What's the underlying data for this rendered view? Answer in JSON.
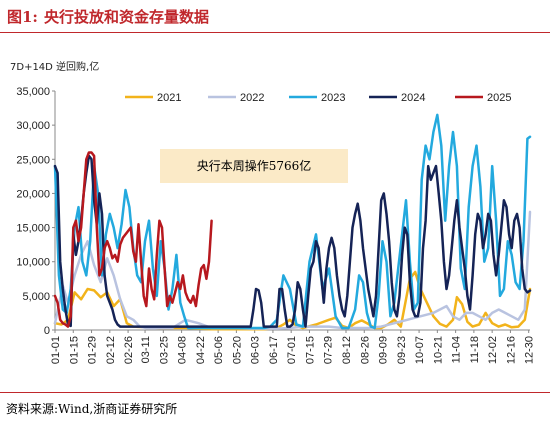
{
  "header": {
    "figure_label": "图1:",
    "title": "央行投放和资金存量数据"
  },
  "footer": {
    "source": "资料来源:Wind,浙商证券研究所"
  },
  "chart_data": {
    "type": "line",
    "unit_label": "7D+14D 逆回购,亿",
    "annotation": "央行本周操作5766亿",
    "ylim": [
      0,
      35000
    ],
    "yticks": [
      "0",
      "5,000",
      "10,000",
      "15,000",
      "20,000",
      "25,000",
      "30,000",
      "35,000"
    ],
    "yvalues": [
      0,
      5000,
      10000,
      15000,
      20000,
      25000,
      30000,
      35000
    ],
    "x_ticks": [
      "01-01",
      "01-15",
      "01-29",
      "02-12",
      "02-26",
      "03-11",
      "03-25",
      "04-08",
      "04-22",
      "05-06",
      "05-20",
      "06-03",
      "06-17",
      "07-01",
      "07-15",
      "07-29",
      "08-12",
      "08-26",
      "09-09",
      "09-23",
      "10-07",
      "10-21",
      "11-04",
      "11-18",
      "12-02",
      "12-16",
      "12-30"
    ],
    "x_tick_days": [
      0,
      14,
      28,
      42,
      56,
      69,
      83,
      97,
      111,
      125,
      139,
      153,
      167,
      181,
      195,
      209,
      223,
      237,
      251,
      265,
      279,
      293,
      307,
      321,
      335,
      349,
      363
    ],
    "legend_position": "top",
    "series": [
      {
        "name": "2021",
        "color": "#f2b31b",
        "x": [
          0,
          5,
          10,
          15,
          20,
          25,
          30,
          35,
          40,
          45,
          50,
          55,
          60,
          70,
          80,
          90,
          100,
          110,
          120,
          130,
          140,
          150,
          160,
          170,
          175,
          180,
          185,
          190,
          200,
          210,
          215,
          220,
          225,
          230,
          235,
          240,
          245,
          250,
          255,
          260,
          265,
          268,
          272,
          276,
          280,
          285,
          290,
          295,
          300,
          305,
          308,
          312,
          316,
          320,
          325,
          330,
          335,
          340,
          345,
          350,
          355,
          360,
          364
        ],
        "y": [
          1000,
          800,
          1500,
          5500,
          4500,
          6000,
          5800,
          4800,
          5500,
          3500,
          4500,
          1000,
          500,
          400,
          300,
          300,
          300,
          200,
          100,
          100,
          100,
          100,
          100,
          300,
          800,
          1500,
          600,
          300,
          800,
          1500,
          1800,
          600,
          300,
          1000,
          1400,
          900,
          300,
          300,
          800,
          1500,
          500,
          3500,
          7500,
          8500,
          6000,
          4000,
          2000,
          900,
          500,
          1500,
          4800,
          3800,
          1200,
          500,
          800,
          2500,
          1000,
          500,
          800,
          400,
          500,
          1500,
          6000
        ]
      },
      {
        "name": "2022",
        "color": "#b9c3e0",
        "x": [
          0,
          6,
          10,
          15,
          20,
          25,
          30,
          35,
          40,
          45,
          50,
          55,
          60,
          65,
          70,
          75,
          80,
          90,
          100,
          110,
          120,
          130,
          140,
          150,
          160,
          170,
          180,
          190,
          200,
          210,
          220,
          230,
          240,
          250,
          260,
          270,
          280,
          290,
          300,
          305,
          310,
          315,
          320,
          325,
          330,
          335,
          340,
          345,
          350,
          355,
          360,
          364
        ],
        "y": [
          1000,
          6500,
          4000,
          8000,
          11000,
          13000,
          9500,
          7000,
          10500,
          8000,
          4500,
          2000,
          1500,
          500,
          300,
          300,
          300,
          300,
          1500,
          1000,
          300,
          300,
          300,
          200,
          200,
          200,
          300,
          500,
          500,
          500,
          300,
          300,
          300,
          500,
          1000,
          1500,
          2000,
          2500,
          3500,
          2000,
          1500,
          2500,
          2500,
          2000,
          1500,
          2500,
          3000,
          2500,
          2000,
          1500,
          3000,
          17300
        ]
      },
      {
        "name": "2023",
        "color": "#23a9de",
        "x": [
          0,
          3,
          6,
          9,
          12,
          15,
          18,
          21,
          24,
          27,
          30,
          33,
          36,
          39,
          42,
          45,
          48,
          51,
          54,
          57,
          60,
          63,
          66,
          69,
          72,
          75,
          78,
          81,
          84,
          87,
          90,
          93,
          96,
          99,
          102,
          105,
          108,
          111,
          114,
          117,
          120,
          130,
          140,
          150,
          160,
          165,
          170,
          175,
          180,
          185,
          190,
          195,
          200,
          205,
          210,
          215,
          220,
          225,
          230,
          233,
          236,
          239,
          242,
          245,
          248,
          251,
          254,
          257,
          260,
          263,
          266,
          269,
          272,
          275,
          278,
          281,
          284,
          287,
          290,
          293,
          296,
          299,
          302,
          305,
          308,
          311,
          314,
          317,
          320,
          323,
          326,
          329,
          332,
          335,
          338,
          341,
          344,
          347,
          350,
          353,
          356,
          359,
          362,
          364
        ],
        "y": [
          24000,
          8000,
          3000,
          2500,
          6000,
          15000,
          18000,
          10000,
          8000,
          13000,
          24000,
          20000,
          8000,
          14000,
          17000,
          15000,
          12000,
          15500,
          20500,
          18000,
          12000,
          8000,
          7000,
          13000,
          16000,
          9000,
          5000,
          13000,
          9000,
          3000,
          6000,
          11000,
          4000,
          2000,
          300,
          300,
          300,
          300,
          300,
          300,
          300,
          300,
          300,
          300,
          300,
          500,
          1500,
          8000,
          6000,
          800,
          500,
          10000,
          14000,
          6000,
          9000,
          2000,
          300,
          300,
          3000,
          8000,
          7000,
          2500,
          500,
          300,
          5000,
          13000,
          10000,
          2000,
          4000,
          9000,
          14000,
          19000,
          10000,
          3000,
          4000,
          22000,
          27000,
          25000,
          29000,
          31500,
          27000,
          16000,
          24000,
          29000,
          24000,
          9000,
          6000,
          18000,
          24000,
          27000,
          21000,
          10000,
          12000,
          24000,
          16000,
          5000,
          6000,
          13000,
          11000,
          7000,
          6000,
          13000,
          28000,
          28300
        ]
      },
      {
        "name": "2024",
        "color": "#152356",
        "x": [
          0,
          2,
          4,
          6,
          8,
          10,
          12,
          14,
          16,
          18,
          20,
          22,
          24,
          26,
          28,
          30,
          32,
          34,
          36,
          38,
          40,
          42,
          44,
          46,
          48,
          50,
          55,
          60,
          65,
          70,
          75,
          80,
          85,
          90,
          95,
          100,
          110,
          120,
          130,
          140,
          150,
          152,
          154,
          156,
          158,
          160,
          165,
          170,
          172,
          174,
          176,
          178,
          180,
          182,
          184,
          186,
          188,
          190,
          192,
          194,
          196,
          198,
          200,
          202,
          204,
          206,
          208,
          210,
          212,
          214,
          216,
          218,
          220,
          222,
          224,
          226,
          228,
          230,
          232,
          234,
          236,
          238,
          240,
          242,
          244,
          246,
          248,
          250,
          252,
          254,
          256,
          258,
          260,
          262,
          264,
          266,
          268,
          270,
          272,
          274,
          276,
          278,
          280,
          282,
          284,
          286,
          288,
          290,
          292,
          294,
          296,
          298,
          300,
          302,
          304,
          306,
          308,
          310,
          312,
          314,
          316,
          318,
          320,
          322,
          324,
          326,
          328,
          330,
          332,
          334,
          336,
          338,
          340,
          342,
          344,
          346,
          348,
          350,
          352,
          354,
          356,
          358,
          360,
          362,
          364
        ],
        "y": [
          24000,
          23000,
          10000,
          6000,
          3000,
          800,
          600,
          14000,
          11000,
          13000,
          16000,
          20000,
          23000,
          25500,
          25000,
          19000,
          15500,
          20000,
          17000,
          8000,
          5000,
          4000,
          3000,
          1500,
          800,
          500,
          500,
          500,
          500,
          500,
          500,
          500,
          500,
          500,
          500,
          500,
          500,
          500,
          500,
          500,
          500,
          3000,
          6000,
          5800,
          4000,
          500,
          500,
          500,
          6000,
          6000,
          3000,
          500,
          500,
          800,
          3000,
          7000,
          6000,
          3000,
          500,
          5000,
          9000,
          10000,
          13000,
          12000,
          8000,
          4000,
          9000,
          12000,
          13500,
          12000,
          8000,
          5000,
          3000,
          2000,
          5000,
          10000,
          15000,
          17000,
          18500,
          16000,
          12000,
          9000,
          6000,
          4000,
          2000,
          5000,
          12000,
          19000,
          20000,
          17000,
          13000,
          7000,
          3000,
          2000,
          5000,
          11000,
          15000,
          14000,
          7000,
          3000,
          2000,
          2000,
          4000,
          12000,
          16000,
          24000,
          22000,
          23000,
          24000,
          20000,
          16000,
          10000,
          6000,
          8000,
          12000,
          16000,
          19000,
          15000,
          12000,
          9000,
          5000,
          3000,
          8000,
          14000,
          17000,
          16000,
          12000,
          14000,
          17000,
          16000,
          11000,
          8000,
          11000,
          15000,
          19000,
          18000,
          14000,
          12000,
          16000,
          17000,
          15000,
          9000,
          6000,
          5500,
          5766
        ]
      },
      {
        "name": "2025",
        "color": "#b7181e",
        "x": [
          0,
          2,
          4,
          6,
          8,
          10,
          12,
          14,
          16,
          18,
          20,
          22,
          24,
          26,
          28,
          30,
          32,
          34,
          36,
          38,
          40,
          42,
          44,
          46,
          48,
          50,
          52,
          54,
          56,
          58,
          60,
          62,
          64,
          66,
          68,
          70,
          72,
          74,
          76,
          78,
          80,
          82,
          84,
          86,
          88,
          90,
          92,
          94,
          96,
          98,
          100,
          102,
          104,
          106,
          108,
          110,
          112,
          114,
          116,
          118,
          120
        ],
        "y": [
          5000,
          4000,
          1500,
          1000,
          800,
          500,
          2000,
          15000,
          16000,
          13000,
          15000,
          20000,
          25000,
          26000,
          26000,
          25500,
          15000,
          8000,
          9000,
          12000,
          13000,
          12000,
          10500,
          11000,
          10000,
          12500,
          13500,
          14000,
          14500,
          15000,
          11500,
          10000,
          15500,
          10000,
          5000,
          3500,
          9000,
          6000,
          4500,
          11000,
          16000,
          15000,
          9000,
          3500,
          5000,
          4000,
          5500,
          7000,
          6000,
          8000,
          5500,
          4500,
          4000,
          5000,
          3500,
          6500,
          9000,
          9500,
          7500,
          10000,
          16000
        ]
      }
    ]
  }
}
